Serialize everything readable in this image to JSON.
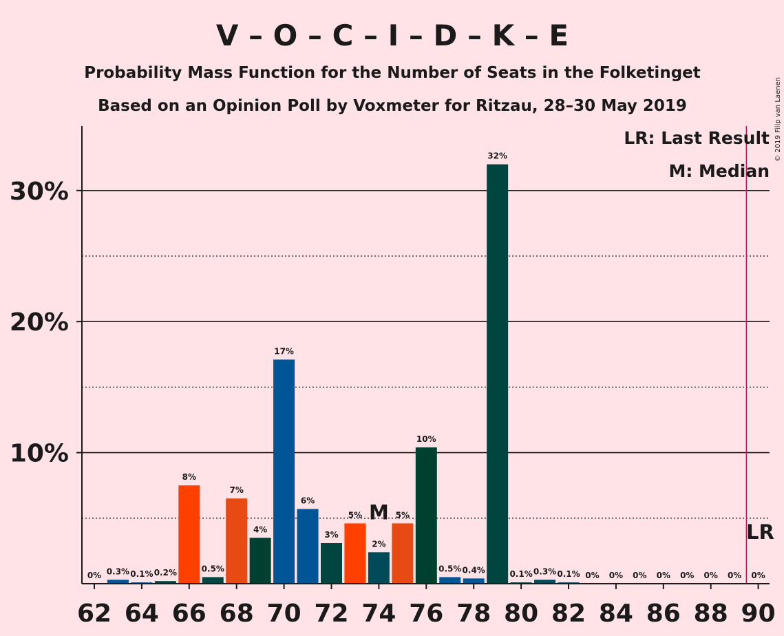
{
  "copyright": "© 2019 Filip van Laenen",
  "chart_data": {
    "type": "bar",
    "title": "V – O – C – I – D – K – E",
    "subtitle": "Probability Mass Function for the Number of Seats in the Folketinget",
    "subtitle2": "Based on an Opinion Poll by Voxmeter for Ritzau, 28–30 May 2019",
    "xlabel": "",
    "ylabel": "",
    "ylim": [
      0,
      35
    ],
    "xlim": [
      62,
      90
    ],
    "grid": true,
    "legend_position": "top-right",
    "legend": [
      "LR: Last Result",
      "M: Median"
    ],
    "median": {
      "x": 74,
      "label": "M"
    },
    "last_result": {
      "x": 89.5,
      "label": "LR"
    },
    "y_ticks": [
      {
        "value": 10,
        "label": "10%"
      },
      {
        "value": 20,
        "label": "20%"
      },
      {
        "value": 30,
        "label": "30%"
      }
    ],
    "x_ticks": [
      62,
      64,
      66,
      68,
      70,
      72,
      74,
      76,
      78,
      80,
      82,
      84,
      86,
      88,
      90
    ],
    "x_tick_labels": [
      "62",
      "64",
      "66",
      "68",
      "70",
      "72",
      "74",
      "76",
      "78",
      "80",
      "82",
      "84",
      "86",
      "88",
      "90"
    ],
    "bars": [
      {
        "x": 62,
        "value": 0,
        "label": "0%",
        "color": "#005596"
      },
      {
        "x": 63,
        "value": 0.3,
        "label": "0.3%",
        "color": "#005596"
      },
      {
        "x": 64,
        "value": 0.1,
        "label": "0.1%",
        "color": "#005596"
      },
      {
        "x": 65,
        "value": 0.2,
        "label": "0.2%",
        "color": "#004540"
      },
      {
        "x": 66,
        "value": 7.5,
        "label": "8%",
        "color": "#FF4000"
      },
      {
        "x": 67,
        "value": 0.5,
        "label": "0.5%",
        "color": "#004540"
      },
      {
        "x": 68,
        "value": 6.5,
        "label": "7%",
        "color": "#E84A13"
      },
      {
        "x": 69,
        "value": 3.5,
        "label": "4%",
        "color": "#004030"
      },
      {
        "x": 70,
        "value": 17.1,
        "label": "17%",
        "color": "#005596"
      },
      {
        "x": 71,
        "value": 5.7,
        "label": "6%",
        "color": "#005596"
      },
      {
        "x": 72,
        "value": 3.1,
        "label": "3%",
        "color": "#004540"
      },
      {
        "x": 73,
        "value": 4.6,
        "label": "5%",
        "color": "#FF4000"
      },
      {
        "x": 74,
        "value": 2.4,
        "label": "2%",
        "color": "#004A5A"
      },
      {
        "x": 75,
        "value": 4.6,
        "label": "5%",
        "color": "#E84A13"
      },
      {
        "x": 76,
        "value": 10.4,
        "label": "10%",
        "color": "#004030"
      },
      {
        "x": 77,
        "value": 0.5,
        "label": "0.5%",
        "color": "#005596"
      },
      {
        "x": 78,
        "value": 0.4,
        "label": "0.4%",
        "color": "#005596"
      },
      {
        "x": 79,
        "value": 32.0,
        "label": "32%",
        "color": "#004540"
      },
      {
        "x": 80,
        "value": 0.1,
        "label": "0.1%",
        "color": "#004540"
      },
      {
        "x": 81,
        "value": 0.3,
        "label": "0.3%",
        "color": "#004A5A"
      },
      {
        "x": 82,
        "value": 0.1,
        "label": "0.1%",
        "color": "#004A5A"
      },
      {
        "x": 83,
        "value": 0,
        "label": "0%",
        "color": "#004540"
      },
      {
        "x": 84,
        "value": 0,
        "label": "0%",
        "color": "#004540"
      },
      {
        "x": 85,
        "value": 0,
        "label": "0%",
        "color": "#004540"
      },
      {
        "x": 86,
        "value": 0,
        "label": "0%",
        "color": "#004540"
      },
      {
        "x": 87,
        "value": 0,
        "label": "0%",
        "color": "#004540"
      },
      {
        "x": 88,
        "value": 0,
        "label": "0%",
        "color": "#004540"
      },
      {
        "x": 89,
        "value": 0,
        "label": "0%",
        "color": "#004540"
      },
      {
        "x": 90,
        "value": 0,
        "label": "0%",
        "color": "#004540"
      }
    ],
    "colors": {
      "background": "#FFE3E7",
      "last_result_line": "#C2185B",
      "axis": "#1a1a1a"
    }
  }
}
